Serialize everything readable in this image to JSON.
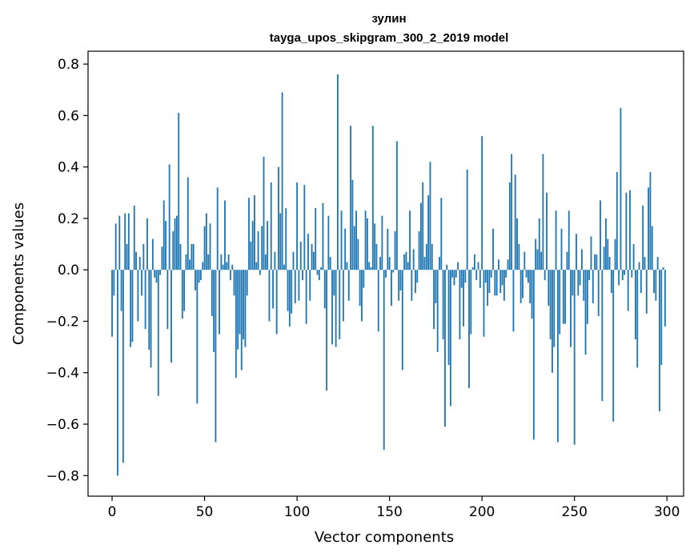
{
  "chart_data": {
    "type": "bar",
    "title": "зулин",
    "subtitle": "tayga_upos_skipgram_300_2_2019 model",
    "xlabel": "Vector components",
    "ylabel": "Components values",
    "xlim": [
      -13,
      309
    ],
    "ylim": [
      -0.88,
      0.85
    ],
    "xticks": [
      0,
      50,
      100,
      150,
      200,
      250,
      300
    ],
    "xtick_labels": [
      "0",
      "50",
      "100",
      "150",
      "200",
      "250",
      "300"
    ],
    "yticks": [
      -0.8,
      -0.6,
      -0.4,
      -0.2,
      0.0,
      0.2,
      0.4,
      0.6,
      0.8
    ],
    "ytick_labels": [
      "−0.8",
      "−0.6",
      "−0.4",
      "−0.2",
      "0.0",
      "0.2",
      "0.4",
      "0.6",
      "0.8"
    ],
    "bar_color": "#1f77b4",
    "x": "0..299",
    "values": [
      -0.26,
      -0.1,
      0.18,
      -0.8,
      0.21,
      -0.16,
      -0.75,
      0.22,
      0.1,
      0.22,
      -0.3,
      -0.28,
      0.25,
      0.07,
      -0.2,
      0.05,
      -0.1,
      0.1,
      -0.23,
      0.2,
      -0.31,
      -0.38,
      0.12,
      -0.03,
      -0.05,
      -0.49,
      -0.02,
      0.09,
      0.27,
      0.19,
      -0.23,
      0.41,
      -0.36,
      0.15,
      0.2,
      0.21,
      0.61,
      0.1,
      -0.19,
      -0.16,
      0.06,
      0.36,
      0.04,
      0.1,
      0.1,
      -0.08,
      -0.52,
      -0.05,
      -0.04,
      0.03,
      0.17,
      0.22,
      0.06,
      0.18,
      -0.18,
      -0.32,
      -0.67,
      0.32,
      -0.25,
      0.06,
      0.02,
      0.27,
      0.03,
      0.06,
      -0.04,
      0.02,
      -0.1,
      -0.42,
      -0.31,
      -0.25,
      -0.39,
      -0.27,
      -0.3,
      -0.1,
      0.28,
      0.11,
      0.19,
      0.29,
      0.03,
      0.15,
      -0.02,
      0.17,
      0.44,
      0.06,
      0.19,
      -0.2,
      0.34,
      -0.15,
      0.07,
      -0.25,
      0.4,
      0.22,
      0.69,
      0.02,
      0.24,
      -0.16,
      -0.22,
      -0.17,
      0.07,
      -0.13,
      0.34,
      -0.12,
      0.11,
      -0.04,
      0.33,
      -0.21,
      0.14,
      -0.12,
      0.1,
      0.07,
      0.24,
      -0.02,
      -0.04,
      0.01,
      0.26,
      -0.15,
      -0.47,
      0.21,
      0.05,
      -0.29,
      -0.1,
      -0.3,
      0.76,
      -0.27,
      0.23,
      -0.2,
      0.16,
      0.03,
      -0.12,
      0.56,
      0.35,
      0.17,
      0.23,
      0.12,
      -0.14,
      -0.2,
      -0.07,
      0.23,
      0.2,
      0.03,
      0.01,
      0.56,
      0.18,
      0.1,
      -0.24,
      0.05,
      0.21,
      -0.7,
      -0.03,
      0.16,
      0.05,
      -0.14,
      -0.01,
      0.15,
      0.5,
      -0.12,
      -0.08,
      -0.39,
      0.06,
      0.07,
      0.03,
      0.23,
      -0.12,
      0.08,
      -0.09,
      -0.05,
      0.15,
      0.26,
      0.34,
      0.05,
      0.1,
      0.29,
      0.42,
      0.1,
      -0.23,
      -0.13,
      -0.32,
      0.05,
      0.28,
      -0.27,
      -0.61,
      0.02,
      -0.37,
      -0.53,
      -0.03,
      -0.06,
      -0.03,
      0.03,
      -0.27,
      -0.07,
      -0.22,
      -0.05,
      0.39,
      -0.46,
      -0.25,
      0.01,
      0.06,
      -0.04,
      0.03,
      -0.07,
      0.52,
      -0.26,
      -0.05,
      -0.14,
      -0.09,
      -0.03,
      0.16,
      -0.1,
      -0.1,
      0.04,
      -0.09,
      -0.06,
      -0.12,
      -0.03,
      0.04,
      0.34,
      0.45,
      -0.24,
      0.37,
      0.2,
      0.1,
      -0.13,
      -0.11,
      0.07,
      -0.03,
      -0.05,
      -0.13,
      -0.19,
      -0.66,
      0.12,
      0.08,
      0.2,
      0.07,
      0.45,
      -0.04,
      0.3,
      -0.14,
      -0.27,
      -0.4,
      -0.3,
      0.23,
      -0.67,
      -0.25,
      0.16,
      -0.21,
      -0.21,
      0.07,
      0.23,
      -0.3,
      -0.1,
      -0.68,
      0.14,
      -0.1,
      -0.06,
      0.08,
      -0.12,
      -0.33,
      -0.21,
      -0.04,
      0.13,
      -0.13,
      0.06,
      0.06,
      -0.18,
      0.27,
      -0.51,
      0.09,
      0.2,
      0.12,
      0.05,
      -0.09,
      -0.59,
      0.12,
      0.38,
      -0.06,
      0.63,
      -0.04,
      -0.02,
      0.3,
      -0.16,
      0.31,
      -0.03,
      0.1,
      -0.27,
      -0.38,
      0.03,
      -0.09,
      0.25,
      0.05,
      -0.17,
      0.32,
      0.38,
      0.17,
      -0.09,
      -0.12,
      0.05,
      -0.55,
      -0.37,
      0.01,
      -0.22
    ]
  }
}
